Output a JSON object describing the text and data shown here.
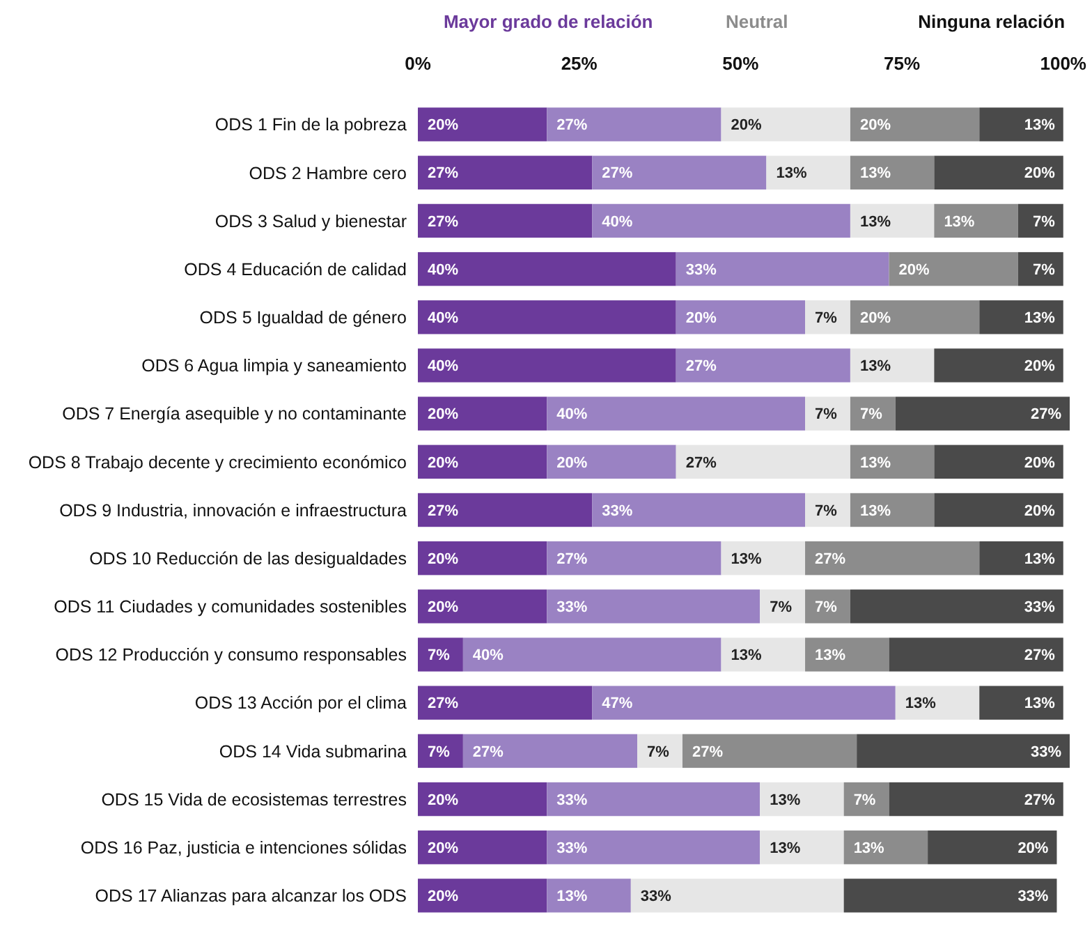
{
  "chart_data": {
    "type": "bar",
    "orientation": "horizontal",
    "stacked": true,
    "categories": [
      "ODS 1 Fin de la pobreza",
      "ODS 2 Hambre cero",
      "ODS 3 Salud y bienestar",
      "ODS 4 Educación de calidad",
      "ODS 5 Igualdad de género",
      "ODS 6 Agua limpia y saneamiento",
      "ODS 7 Energía asequible y no contaminante",
      "ODS 8 Trabajo decente y crecimiento económico",
      "ODS 9 Industria, innovación e infraestructura",
      "ODS 10 Reducción de las desigualdades",
      "ODS 11 Ciudades y comunidades sostenibles",
      "ODS 12 Producción y consumo responsables",
      "ODS 13 Acción por el clima",
      "ODS 14 Vida submarina",
      "ODS 15 Vida de ecosistemas terrestres",
      "ODS 16 Paz, justicia e intenciones sólidas",
      "ODS 17 Alianzas para alcanzar los ODS"
    ],
    "series": [
      {
        "color": "#6b3a9b",
        "values": [
          20,
          27,
          27,
          40,
          40,
          40,
          20,
          20,
          27,
          20,
          20,
          7,
          27,
          7,
          20,
          20,
          20
        ],
        "value_labels": [
          "20%",
          "27%",
          "27%",
          "40%",
          "40%",
          "40%",
          "20%",
          "20%",
          "27%",
          "20%",
          "20%",
          "7%",
          "27%",
          "7%",
          "20%",
          "20%",
          "20%"
        ]
      },
      {
        "color": "#9a82c3",
        "values": [
          27,
          27,
          40,
          33,
          20,
          27,
          40,
          20,
          33,
          27,
          33,
          40,
          47,
          27,
          33,
          33,
          13
        ],
        "value_labels": [
          "27%",
          "27%",
          "40%",
          "33%",
          "20%",
          "27%",
          "40%",
          "20%",
          "33%",
          "27%",
          "33%",
          "40%",
          "47%",
          "27%",
          "33%",
          "33%",
          "13%"
        ]
      },
      {
        "color": "#e6e6e6",
        "values": [
          20,
          13,
          13,
          0,
          7,
          13,
          7,
          27,
          7,
          13,
          7,
          13,
          13,
          7,
          13,
          13,
          33
        ],
        "value_labels": [
          "20%",
          "13%",
          "13%",
          null,
          "7%",
          "13%",
          "7%",
          "27%",
          "7%",
          "13%",
          "7%",
          "13%",
          "13%",
          "7%",
          "13%",
          "13%",
          "33%"
        ]
      },
      {
        "color": "#8c8c8c",
        "values": [
          20,
          13,
          13,
          20,
          20,
          0,
          7,
          13,
          13,
          27,
          7,
          13,
          0,
          27,
          7,
          13,
          0
        ],
        "value_labels": [
          "20%",
          "13%",
          "13%",
          "20%",
          "20%",
          null,
          "7%",
          "13%",
          "13%",
          "27%",
          "7%",
          "13%",
          null,
          "27%",
          "7%",
          "13%",
          null
        ]
      },
      {
        "color": "#4a4a4a",
        "values": [
          13,
          20,
          7,
          7,
          13,
          20,
          27,
          20,
          20,
          13,
          33,
          27,
          13,
          33,
          27,
          20,
          33
        ],
        "value_labels": [
          "13%",
          "20%",
          "7%",
          "7%",
          "13%",
          "20%",
          "27%",
          "20%",
          "20%",
          "13%",
          "33%",
          "27%",
          "13%",
          "33%",
          "27%",
          "20%",
          "33%"
        ]
      }
    ],
    "xlim": [
      0,
      101
    ],
    "xticks": [
      {
        "value": 0,
        "label": "0%"
      },
      {
        "value": 25,
        "label": "25%"
      },
      {
        "value": 50,
        "label": "50%"
      },
      {
        "value": 75,
        "label": "75%"
      },
      {
        "value": 100,
        "label": "100%"
      }
    ],
    "annotations": [
      "Mayor grado de relación",
      "Neutral",
      "Ninguna relación"
    ]
  }
}
